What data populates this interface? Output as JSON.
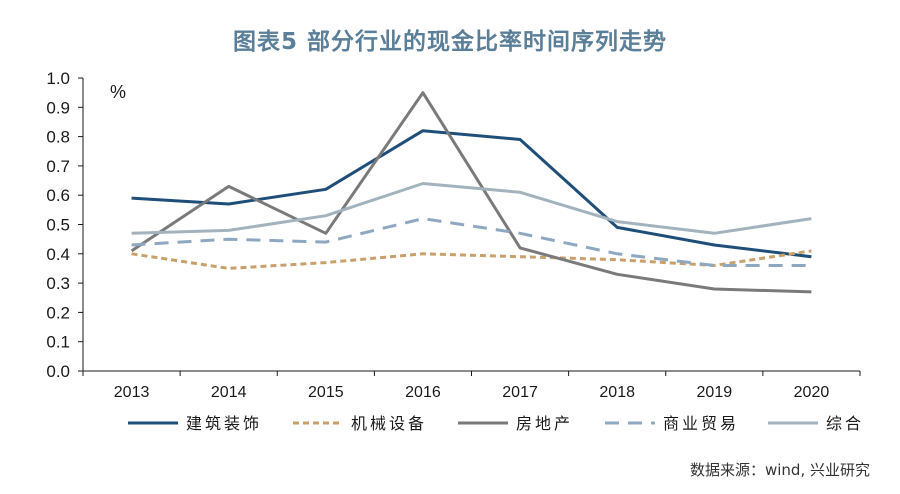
{
  "title": "图表5 部分行业的现金比率时间序列走势",
  "source": "数据来源：wind, 兴业研究",
  "chart_data": {
    "type": "line",
    "unit_label": "%",
    "x": [
      "2013",
      "2014",
      "2015",
      "2016",
      "2017",
      "2018",
      "2019",
      "2020"
    ],
    "ylim": [
      0.0,
      1.0
    ],
    "yticks": [
      "0.0",
      "0.1",
      "0.2",
      "0.3",
      "0.4",
      "0.5",
      "0.6",
      "0.7",
      "0.8",
      "0.9",
      "1.0"
    ],
    "grid": false,
    "legend_position": "bottom",
    "series": [
      {
        "name": "建筑装饰",
        "color": "#1f4e79",
        "dash": "solid",
        "values": [
          0.59,
          0.57,
          0.62,
          0.82,
          0.79,
          0.49,
          0.43,
          0.39
        ]
      },
      {
        "name": "机械设备",
        "color": "#c9a06b",
        "dash": "short",
        "values": [
          0.4,
          0.35,
          0.37,
          0.4,
          0.39,
          0.38,
          0.36,
          0.41
        ]
      },
      {
        "name": "房地产",
        "color": "#7a7a7a",
        "dash": "solid",
        "values": [
          0.41,
          0.63,
          0.47,
          0.95,
          0.42,
          0.33,
          0.28,
          0.27
        ]
      },
      {
        "name": "商业贸易",
        "color": "#8fa8c2",
        "dash": "long",
        "values": [
          0.43,
          0.45,
          0.44,
          0.52,
          0.47,
          0.4,
          0.36,
          0.36
        ]
      },
      {
        "name": "综合",
        "color": "#a3b3bd",
        "dash": "solid",
        "values": [
          0.47,
          0.48,
          0.53,
          0.64,
          0.61,
          0.51,
          0.47,
          0.52
        ]
      }
    ]
  }
}
